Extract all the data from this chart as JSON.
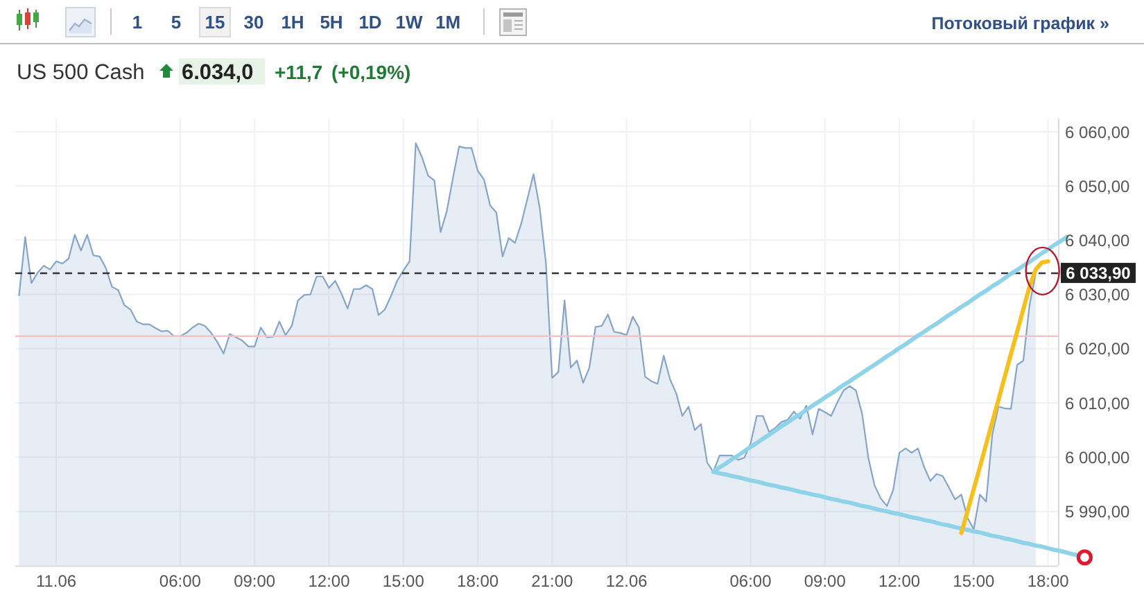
{
  "chart_data": {
    "type": "area",
    "title": "US 500 Cash",
    "annotations": [
      "1",
      "5",
      "15",
      "30",
      "1H",
      "5H",
      "1D",
      "1W",
      "1M",
      "Потоковый график »",
      "6.034,0",
      "+11,7",
      "(+0,19%)"
    ],
    "categories": [
      null,
      null,
      null,
      null,
      null,
      null,
      "11.06",
      null,
      null,
      null,
      null,
      null,
      null,
      null,
      null,
      null,
      null,
      null,
      null,
      null,
      null,
      null,
      null,
      null,
      null,
      null,
      "06:00",
      null,
      null,
      null,
      null,
      null,
      null,
      null,
      null,
      null,
      null,
      null,
      "09:00",
      null,
      null,
      null,
      null,
      null,
      null,
      null,
      null,
      null,
      null,
      null,
      "12:00",
      null,
      null,
      null,
      null,
      null,
      null,
      null,
      null,
      null,
      null,
      null,
      "15:00",
      null,
      null,
      null,
      null,
      null,
      null,
      null,
      null,
      null,
      null,
      null,
      "18:00",
      null,
      null,
      null,
      null,
      null,
      null,
      null,
      null,
      null,
      null,
      null,
      "21:00",
      null,
      null,
      null,
      null,
      null,
      null,
      null,
      null,
      null,
      null,
      null,
      "12.06",
      null,
      null,
      null,
      null,
      null,
      null,
      null,
      null,
      null,
      null,
      null,
      null,
      null,
      null,
      null,
      null,
      null,
      null,
      null,
      "06:00",
      null,
      null,
      null,
      null,
      null,
      null,
      null,
      null,
      null,
      null,
      null,
      "09:00",
      null,
      null,
      null,
      null,
      null,
      null,
      null,
      null,
      null,
      null,
      null,
      "12:00",
      null,
      null,
      null,
      null,
      null,
      null,
      null,
      null,
      null,
      null,
      null,
      "15:00",
      null,
      null,
      null,
      null,
      null,
      null,
      null,
      null,
      null,
      null,
      null,
      "18:00",
      null,
      null,
      null,
      null,
      null
    ],
    "series": [
      {
        "color": "#86a4c7",
        "values": [
          6029.7,
          6040.6,
          6032.1,
          6034.0,
          6035.3,
          6034.6,
          6036.1,
          6035.7,
          6036.6,
          6041.0,
          6038.1,
          6041.0,
          6037.2,
          6037.0,
          6034.9,
          6031.4,
          6030.8,
          6028.0,
          6027.2,
          6025.0,
          6024.5,
          6024.5,
          6023.8,
          6023.2,
          6023.3,
          6022.3,
          6022.3,
          6022.9,
          6023.9,
          6024.6,
          6024.2,
          6022.9,
          6021.2,
          6019.1,
          6022.7,
          6022.1,
          6021.5,
          6020.4,
          6020.4,
          6023.9,
          6022.1,
          6022.2,
          6025.0,
          6022.5,
          6024.2,
          6028.9,
          6029.9,
          6030.0,
          6033.3,
          6033.3,
          6031.2,
          6032.5,
          6030.2,
          6027.4,
          6031.0,
          6031.0,
          6031.7,
          6031.0,
          6026.2,
          6027.2,
          6029.7,
          6032.5,
          6034.4,
          6036.1,
          6057.9,
          6055.3,
          6051.9,
          6051.0,
          6041.5,
          6045.3,
          6051.5,
          6057.3,
          6057.0,
          6057.0,
          6052.8,
          6051.2,
          6046.4,
          6045.1,
          6037.0,
          6040.4,
          6039.5,
          6043.0,
          6047.6,
          6052.2,
          6045.9,
          6035.7,
          6014.6,
          6015.7,
          6028.9,
          6016.5,
          6017.8,
          6013.7,
          6016.5,
          6024.0,
          6024.2,
          6026.3,
          6023.1,
          6022.9,
          6022.5,
          6025.9,
          6023.9,
          6014.8,
          6014.0,
          6013.5,
          6018.7,
          6014.4,
          6011.8,
          6007.6,
          6009.3,
          6005.0,
          6006.1,
          5999.0,
          5997.3,
          6000.3,
          6000.3,
          6000.3,
          5999.5,
          5999.9,
          6002.5,
          6007.6,
          6007.6,
          6004.6,
          6005.4,
          6006.5,
          6006.9,
          6008.4,
          6007.1,
          6009.5,
          6004.2,
          6008.9,
          6008.3,
          6007.6,
          6010.1,
          6012.3,
          6013.1,
          6012.3,
          6008.0,
          5999.9,
          5994.8,
          5992.4,
          5991.0,
          5993.9,
          6000.8,
          6001.6,
          6000.8,
          6001.6,
          5998.2,
          5995.6,
          5996.9,
          5996.5,
          5994.4,
          5992.2,
          5993.1,
          5988.8,
          5986.7,
          5993.1,
          5991.8,
          6004.2,
          6009.3,
          6009.0,
          6008.9,
          6017.0,
          6017.8,
          6028.0,
          6033.9,
          null,
          null,
          null,
          null,
          null,
          null,
          null
        ]
      },
      {
        "type": "line",
        "color": "#8fd3e9",
        "values": [
          null,
          null,
          null,
          null,
          null,
          null,
          null,
          null,
          null,
          null,
          null,
          null,
          null,
          null,
          null,
          null,
          null,
          null,
          null,
          null,
          null,
          null,
          null,
          null,
          null,
          null,
          null,
          null,
          null,
          null,
          null,
          null,
          null,
          null,
          null,
          null,
          null,
          null,
          null,
          null,
          null,
          null,
          null,
          null,
          null,
          null,
          null,
          null,
          null,
          null,
          null,
          null,
          null,
          null,
          null,
          null,
          null,
          null,
          null,
          null,
          null,
          null,
          null,
          null,
          null,
          null,
          null,
          null,
          null,
          null,
          null,
          null,
          null,
          null,
          null,
          null,
          null,
          null,
          null,
          null,
          null,
          null,
          null,
          null,
          null,
          null,
          null,
          null,
          null,
          null,
          null,
          null,
          null,
          null,
          null,
          null,
          null,
          null,
          null,
          null,
          null,
          null,
          null,
          null,
          null,
          null,
          null,
          null,
          null,
          null,
          null,
          null,
          5997.3,
          5998.1,
          5998.8,
          5999.6,
          6000.3,
          6001.1,
          6001.9,
          6002.6,
          6003.4,
          6004.1,
          6004.9,
          6005.7,
          6006.4,
          6007.2,
          6007.9,
          6008.7,
          6009.5,
          6010.2,
          6011.0,
          6011.7,
          6012.5,
          6013.3,
          6014.0,
          6014.8,
          6015.5,
          6016.3,
          6017.0,
          6017.8,
          6018.6,
          6019.3,
          6020.1,
          6020.8,
          6021.6,
          6022.4,
          6023.1,
          6023.9,
          6024.6,
          6025.4,
          6026.2,
          6026.9,
          6027.7,
          6028.4,
          6029.2,
          6030.0,
          6030.7,
          6031.5,
          6032.2,
          6033.0,
          6033.8,
          6034.5,
          6035.3,
          6036.0,
          6036.8,
          6037.6,
          6038.3,
          6039.1,
          6039.8,
          6040.6,
          null,
          null
        ]
      },
      {
        "type": "line",
        "color": "#8fd3e9",
        "values": [
          null,
          null,
          null,
          null,
          null,
          null,
          null,
          null,
          null,
          null,
          null,
          null,
          null,
          null,
          null,
          null,
          null,
          null,
          null,
          null,
          null,
          null,
          null,
          null,
          null,
          null,
          null,
          null,
          null,
          null,
          null,
          null,
          null,
          null,
          null,
          null,
          null,
          null,
          null,
          null,
          null,
          null,
          null,
          null,
          null,
          null,
          null,
          null,
          null,
          null,
          null,
          null,
          null,
          null,
          null,
          null,
          null,
          null,
          null,
          null,
          null,
          null,
          null,
          null,
          null,
          null,
          null,
          null,
          null,
          null,
          null,
          null,
          null,
          null,
          null,
          null,
          null,
          null,
          null,
          null,
          null,
          null,
          null,
          null,
          null,
          null,
          null,
          null,
          null,
          null,
          null,
          null,
          null,
          null,
          null,
          null,
          null,
          null,
          null,
          null,
          null,
          null,
          null,
          null,
          null,
          null,
          null,
          null,
          null,
          null,
          null,
          null,
          5997.3,
          5997.0,
          5996.8,
          5996.5,
          5996.3,
          5996.0,
          5995.7,
          5995.5,
          5995.2,
          5994.9,
          5994.7,
          5994.4,
          5994.2,
          5993.9,
          5993.6,
          5993.4,
          5993.1,
          5992.9,
          5992.6,
          5992.3,
          5992.1,
          5991.8,
          5991.6,
          5991.3,
          5991.0,
          5990.8,
          5990.5,
          5990.2,
          5990.0,
          5989.7,
          5989.5,
          5989.2,
          5988.9,
          5988.7,
          5988.4,
          5988.2,
          5987.9,
          5987.6,
          5987.4,
          5987.1,
          5986.8,
          5986.6,
          5986.3,
          5986.1,
          5985.8,
          5985.5,
          5985.3,
          5985.0,
          5984.8,
          5984.5,
          5984.2,
          5984.0,
          5983.7,
          5983.5,
          5983.2,
          5982.9,
          5982.7,
          5982.4,
          5982.1,
          5981.9
        ]
      },
      {
        "type": "line",
        "color": "#f5c01c",
        "values": [
          null,
          null,
          null,
          null,
          null,
          null,
          null,
          null,
          null,
          null,
          null,
          null,
          null,
          null,
          null,
          null,
          null,
          null,
          null,
          null,
          null,
          null,
          null,
          null,
          null,
          null,
          null,
          null,
          null,
          null,
          null,
          null,
          null,
          null,
          null,
          null,
          null,
          null,
          null,
          null,
          null,
          null,
          null,
          null,
          null,
          null,
          null,
          null,
          null,
          null,
          null,
          null,
          null,
          null,
          null,
          null,
          null,
          null,
          null,
          null,
          null,
          null,
          null,
          null,
          null,
          null,
          null,
          null,
          null,
          null,
          null,
          null,
          null,
          null,
          null,
          null,
          null,
          null,
          null,
          null,
          null,
          null,
          null,
          null,
          null,
          null,
          null,
          null,
          null,
          null,
          null,
          null,
          null,
          null,
          null,
          null,
          null,
          null,
          null,
          null,
          null,
          null,
          null,
          null,
          null,
          null,
          null,
          null,
          null,
          null,
          null,
          null,
          null,
          null,
          null,
          null,
          null,
          null,
          null,
          null,
          null,
          null,
          null,
          null,
          null,
          null,
          null,
          null,
          null,
          null,
          null,
          null,
          null,
          null,
          null,
          null,
          null,
          null,
          null,
          null,
          null,
          null,
          null,
          null,
          null,
          null,
          null,
          null,
          null,
          null,
          null,
          null,
          5986.0,
          5990.0,
          5994.1,
          5998.2,
          6002.4,
          6006.5,
          6010.6,
          6014.8,
          6019.0,
          6023.1,
          6027.3,
          6031.4,
          6034.6,
          6035.9,
          6036.1,
          null,
          null,
          null,
          null,
          null
        ]
      }
    ],
    "ylim": [
      5980,
      6062.5
    ],
    "yticks": [
      {
        "value": 5990,
        "label": "5 990,00"
      },
      {
        "value": 6000,
        "label": "6 000,00"
      },
      {
        "value": 6010,
        "label": "6 010,00"
      },
      {
        "value": 6020,
        "label": "6 020,00"
      },
      {
        "value": 6030,
        "label": "6 030,00"
      },
      {
        "value": 6040,
        "label": "6 040,00"
      },
      {
        "value": 6050,
        "label": "6 050,00"
      },
      {
        "value": 6060,
        "label": "6 060,00"
      }
    ],
    "grid": true,
    "ref_lines": [
      {
        "axis": "y",
        "value": 6022.3,
        "color": "#f4c2c7"
      },
      {
        "axis": "y",
        "value": 6033.9,
        "label": "6 033,90",
        "color": "#333333",
        "line_style": "dashed"
      }
    ]
  }
}
